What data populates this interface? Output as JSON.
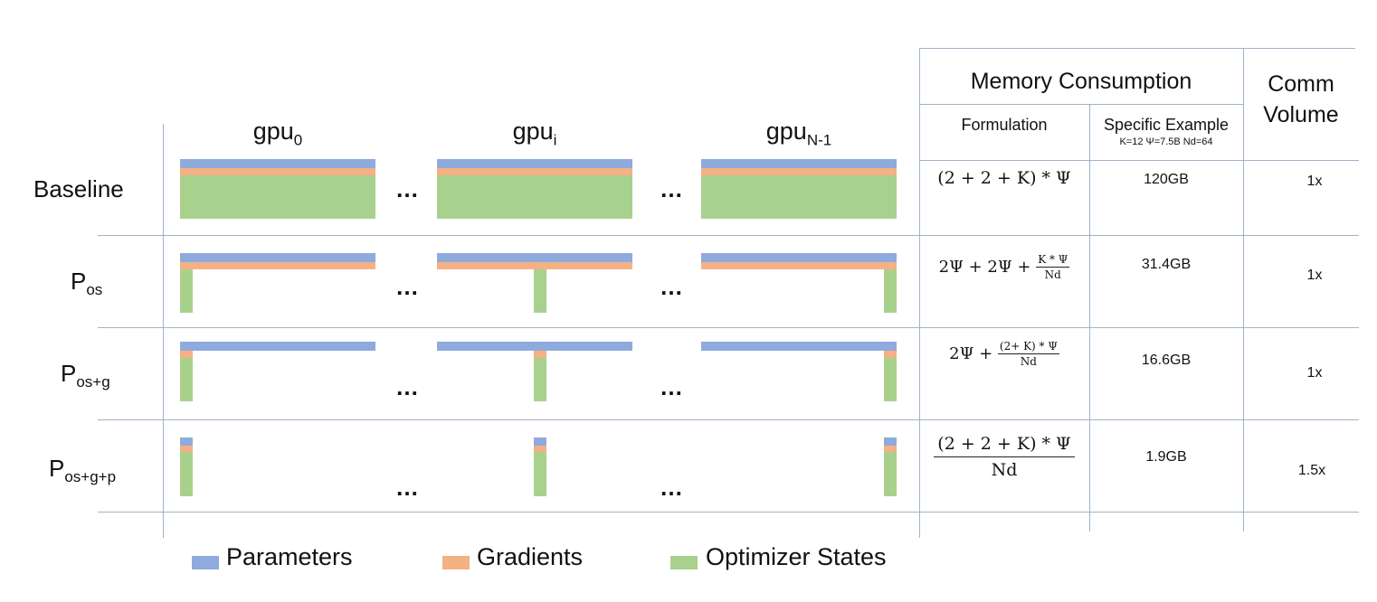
{
  "colors": {
    "parameters": "#8faadc",
    "gradients": "#f4b183",
    "optimizer": "#a9d18e",
    "grid": "#9fb3c8"
  },
  "gpus": [
    {
      "base": "gpu",
      "sub": "0"
    },
    {
      "base": "gpu",
      "sub": "i"
    },
    {
      "base": "gpu",
      "sub": "N-1"
    }
  ],
  "ellipsis": "…",
  "rows": [
    {
      "base": "Baseline",
      "sub": "",
      "formula": "(2 + 2 + K) * Ψ",
      "example": "120GB",
      "comm": "1x"
    },
    {
      "base": "P",
      "sub": "os",
      "formula_lhs": "2Ψ + 2Ψ + ",
      "formula_num": "K * Ψ",
      "formula_den": "Nd",
      "example": "31.4GB",
      "comm": "1x"
    },
    {
      "base": "P",
      "sub": "os+g",
      "formula_lhs": "2Ψ + ",
      "formula_num": "(2+ K) * Ψ",
      "formula_den": "Nd",
      "example": "16.6GB",
      "comm": "1x"
    },
    {
      "base": "P",
      "sub": "os+g+p",
      "formula_num": "(2 + 2 + K) * Ψ",
      "formula_den": "Nd",
      "example": "1.9GB",
      "comm": "1.5x"
    }
  ],
  "headers": {
    "memory": "Memory Consumption",
    "comm_line1": "Comm",
    "comm_line2": "Volume",
    "formulation": "Formulation",
    "specific": "Specific Example",
    "specific_params": "K=12 Ψ=7.5B Nd=64"
  },
  "legend": [
    {
      "label": "Parameters",
      "color_key": "parameters"
    },
    {
      "label": "Gradients",
      "color_key": "gradients"
    },
    {
      "label": "Optimizer States",
      "color_key": "optimizer"
    }
  ]
}
